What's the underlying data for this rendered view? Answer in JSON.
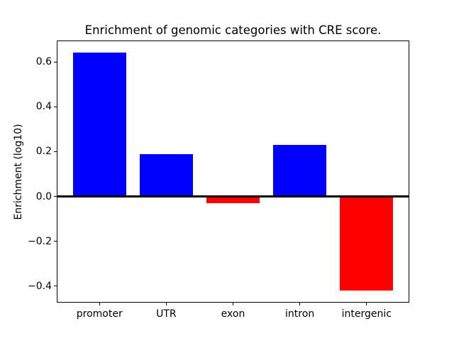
{
  "chart_data": {
    "type": "bar",
    "title": "Enrichment of genomic categories with CRE score.",
    "xlabel": "",
    "ylabel": "Enrichment (log10)",
    "categories": [
      "promoter",
      "UTR",
      "exon",
      "intron",
      "intergenic"
    ],
    "values": [
      0.64,
      0.19,
      -0.03,
      0.23,
      -0.42
    ],
    "bar_colors": [
      "#0000ff",
      "#0000ff",
      "#ff0000",
      "#0000ff",
      "#ff0000"
    ],
    "positive_color": "#0000ff",
    "negative_color": "#ff0000",
    "yticks": [
      0.6,
      0.4,
      0.2,
      0.0,
      -0.2,
      -0.4
    ],
    "ytick_labels": [
      "0.6",
      "0.4",
      "0.2",
      "0.0",
      "−0.2",
      "−0.4"
    ],
    "ylim": [
      -0.473,
      0.695
    ],
    "xlim": [
      -0.64,
      4.64
    ],
    "bar_width_fraction": 0.8,
    "grid": false,
    "legend": null,
    "zero_line": true,
    "frame_color": "#000000",
    "background_color": "#ffffff"
  }
}
